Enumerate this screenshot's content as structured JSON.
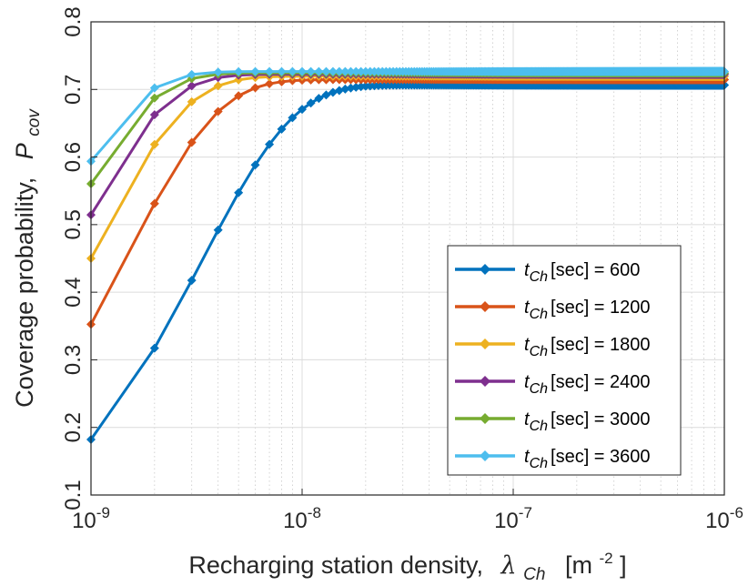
{
  "chart_data": {
    "type": "line",
    "title": "",
    "xlabel": {
      "prefix": "Recharging station density,",
      "symbol": "λ",
      "sub": "Ch",
      "unit_open": "[m",
      "unit_sup": "-2",
      "unit_close": "]"
    },
    "ylabel": {
      "prefix": "Coverage probability,",
      "symbol": "P",
      "sub": "cov"
    },
    "xscale": "log",
    "xlim": [
      1e-09,
      1e-06
    ],
    "ylim": [
      0.1,
      0.8
    ],
    "grid": true,
    "legend_position": "bottom-right",
    "x_ticks": [
      {
        "value": 1e-09,
        "base": "10",
        "exp": "-9"
      },
      {
        "value": 1e-08,
        "base": "10",
        "exp": "-8"
      },
      {
        "value": 1e-07,
        "base": "10",
        "exp": "-7"
      },
      {
        "value": 1e-06,
        "base": "10",
        "exp": "-6"
      }
    ],
    "y_ticks": [
      "0.1",
      "0.2",
      "0.3",
      "0.4",
      "0.5",
      "0.6",
      "0.7",
      "0.8"
    ],
    "x_sample": {
      "start": 1e-09,
      "step": 1e-09,
      "count": 1000,
      "marker_every": 1
    },
    "series": [
      {
        "name": "t_Ch [sec] = 600",
        "legend_var": "t",
        "legend_sub": "Ch",
        "legend_text": "[sec] = 600",
        "color": "#0072BD",
        "A": 0.7065,
        "k": 298000000.0
      },
      {
        "name": "t_Ch [sec] = 1200",
        "legend_var": "t",
        "legend_sub": "Ch",
        "legend_text": "[sec] = 1200",
        "color": "#D95319",
        "A": 0.7145,
        "k": 680000000.0
      },
      {
        "name": "t_Ch [sec] = 1800",
        "legend_var": "t",
        "legend_sub": "Ch",
        "legend_text": "[sec] = 1800",
        "color": "#EDB120",
        "A": 0.7195,
        "k": 982000000.0
      },
      {
        "name": "t_Ch [sec] = 2400",
        "legend_var": "t",
        "legend_sub": "Ch",
        "legend_text": "[sec] = 2400",
        "color": "#7E2F8E",
        "A": 0.7225,
        "k": 1245000000.0
      },
      {
        "name": "t_Ch [sec] = 3000",
        "legend_var": "t",
        "legend_sub": "Ch",
        "legend_text": "[sec] = 3000",
        "color": "#77AC30",
        "A": 0.7245,
        "k": 1485000000.0
      },
      {
        "name": "t_Ch [sec] = 3600",
        "legend_var": "t",
        "legend_sub": "Ch",
        "legend_text": "[sec] = 3600",
        "color": "#4DBEEE",
        "A": 0.7265,
        "k": 1700000000.0
      }
    ]
  }
}
